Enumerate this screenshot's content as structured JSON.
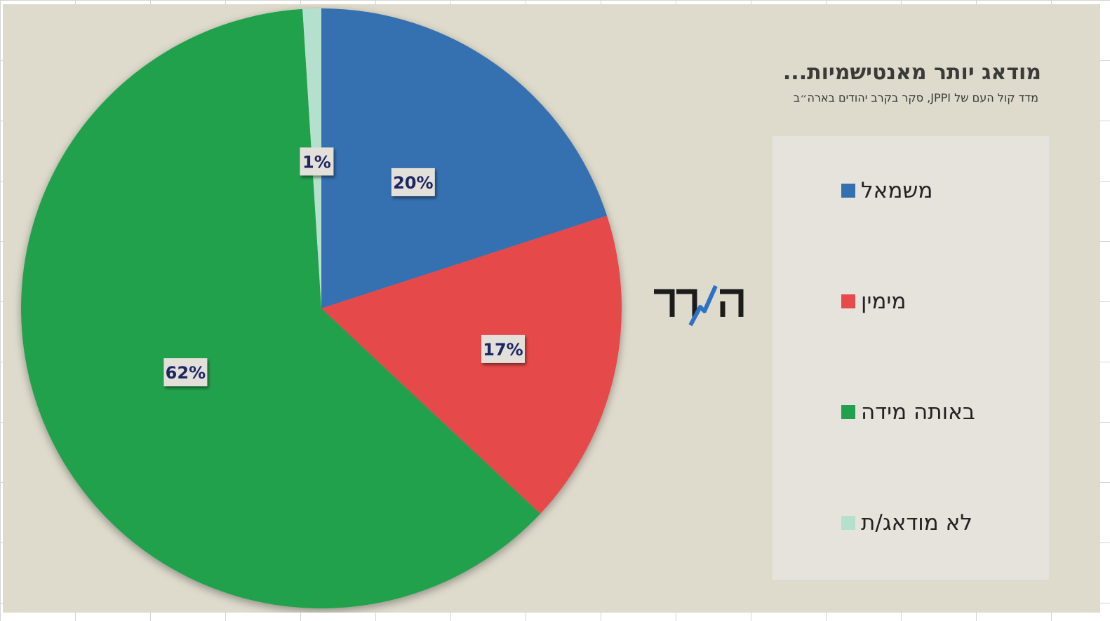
{
  "chart_data": {
    "type": "pie",
    "title": "מודאג יותר מאנטישמיות...",
    "subtitle": "מדד קול העם של JPPI, סקר בקרב יהודים בארה״ב",
    "categories": [
      "משמאל",
      "מימין",
      "באותה מידה",
      "לא מודאג/ת"
    ],
    "values": [
      20,
      17,
      62,
      1
    ],
    "data_labels": [
      "20%",
      "17%",
      "62%",
      "1%"
    ],
    "colors": [
      "#3470b0",
      "#e64a4a",
      "#21a14d",
      "#b5e0cd"
    ],
    "legend_position": "right",
    "start_angle": "12 o'clock, clockwise"
  },
  "logo": {
    "text": "המדד",
    "text_color": "#1c1c1c",
    "accent_color": "#2e72c6"
  },
  "colors": {
    "plot_background": "#dedbcc",
    "legend_background": "#e6e3dc",
    "label_box": "#e3e0d9",
    "label_text": "#1d2563"
  }
}
